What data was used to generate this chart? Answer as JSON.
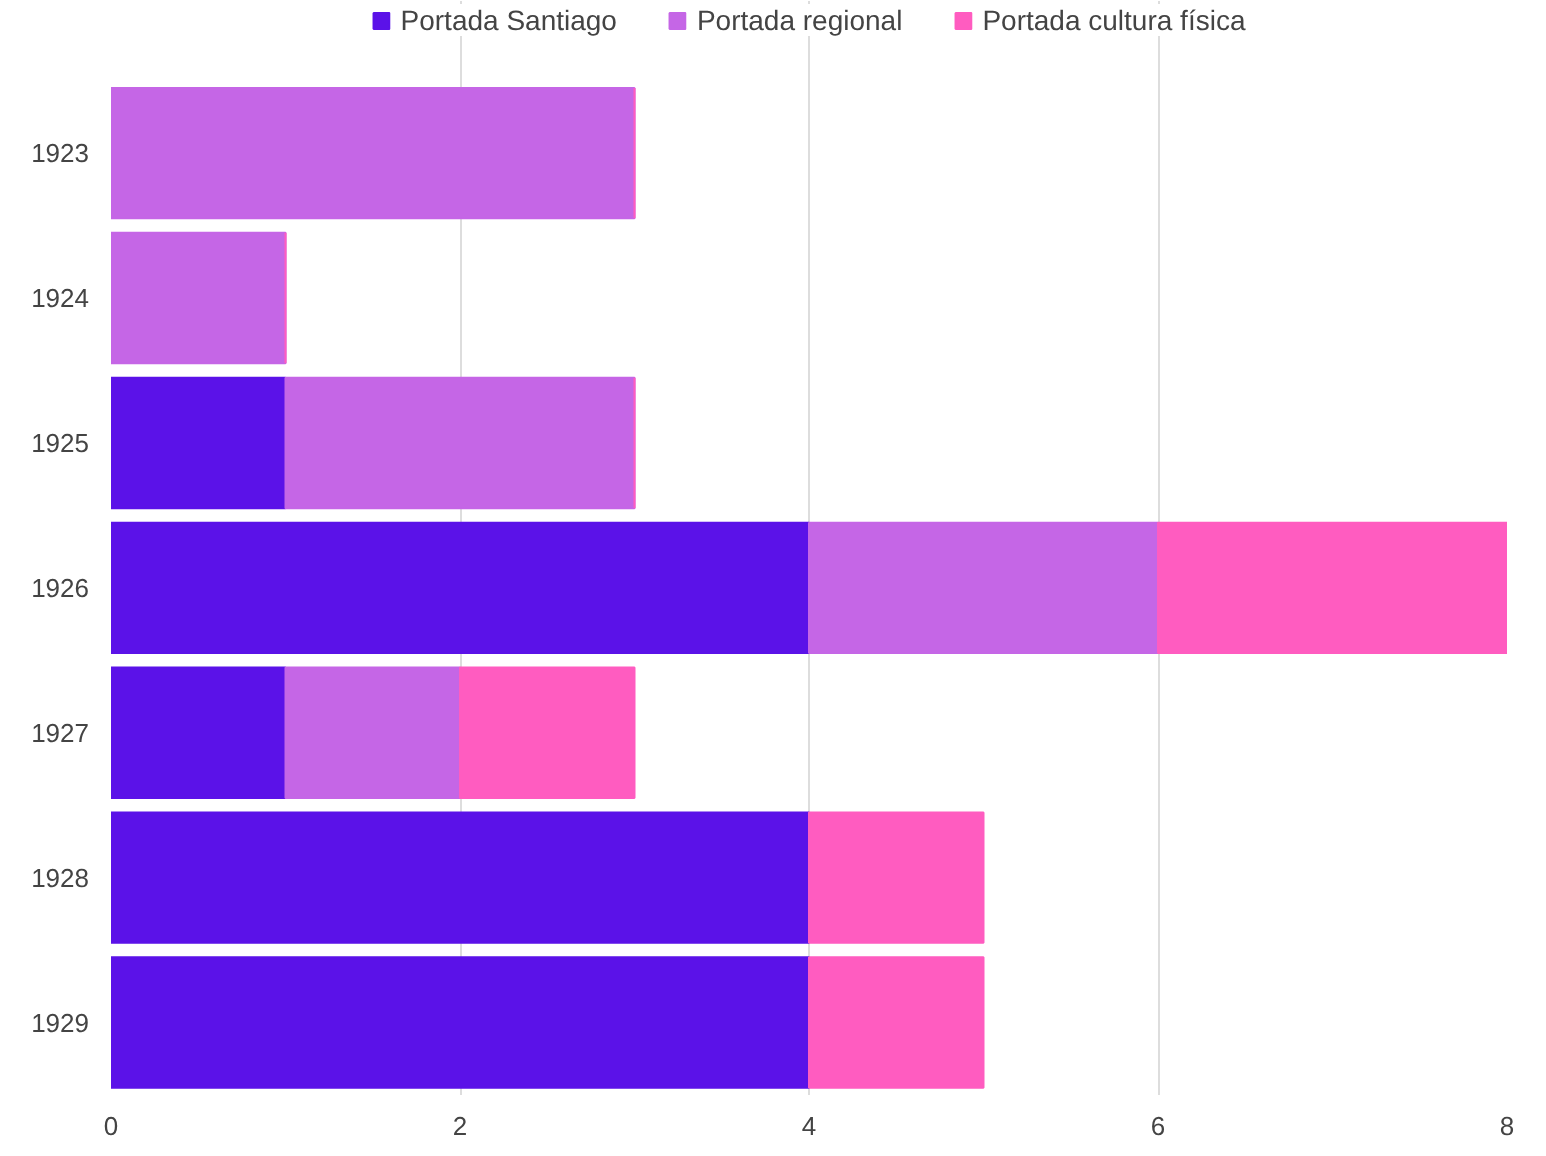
{
  "chart_data": {
    "type": "bar",
    "orientation": "horizontal",
    "stacked": true,
    "categories": [
      "1923",
      "1924",
      "1925",
      "1926",
      "1927",
      "1928",
      "1929"
    ],
    "series": [
      {
        "name": "Portada Santiago",
        "color": "#5b12e8",
        "values": [
          0,
          0,
          1,
          4,
          1,
          4,
          4
        ]
      },
      {
        "name": "Portada regional",
        "color": "#c566e6",
        "values": [
          3,
          1,
          2,
          2,
          1,
          0,
          0
        ]
      },
      {
        "name": "Portada cultura física",
        "color": "#ff5cc0",
        "values": [
          0,
          0,
          0,
          2,
          1,
          1,
          1
        ]
      }
    ],
    "xlim": [
      0,
      8
    ],
    "xticks": [
      0,
      2,
      4,
      6,
      8
    ],
    "grid": "x",
    "legend": "top"
  }
}
